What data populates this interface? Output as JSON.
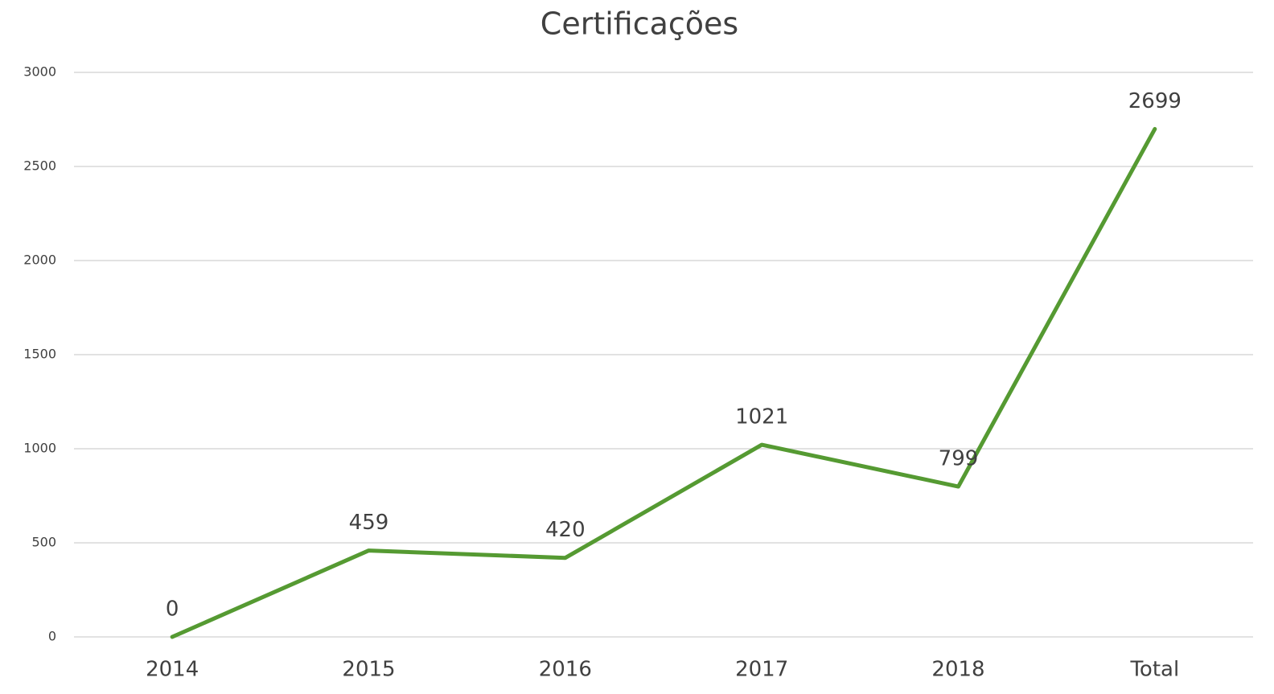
{
  "chart_data": {
    "type": "line",
    "title": "Certificações",
    "categories": [
      "2014",
      "2015",
      "2016",
      "2017",
      "2018",
      "Total"
    ],
    "series": [
      {
        "name": "Certificações",
        "color": "#559a32",
        "values": [
          0,
          459,
          420,
          1021,
          799,
          2699
        ]
      }
    ],
    "ylim": [
      0,
      3000
    ],
    "yticks": [
      0,
      500,
      1000,
      1500,
      2000,
      2500,
      3000
    ],
    "grid": true
  }
}
